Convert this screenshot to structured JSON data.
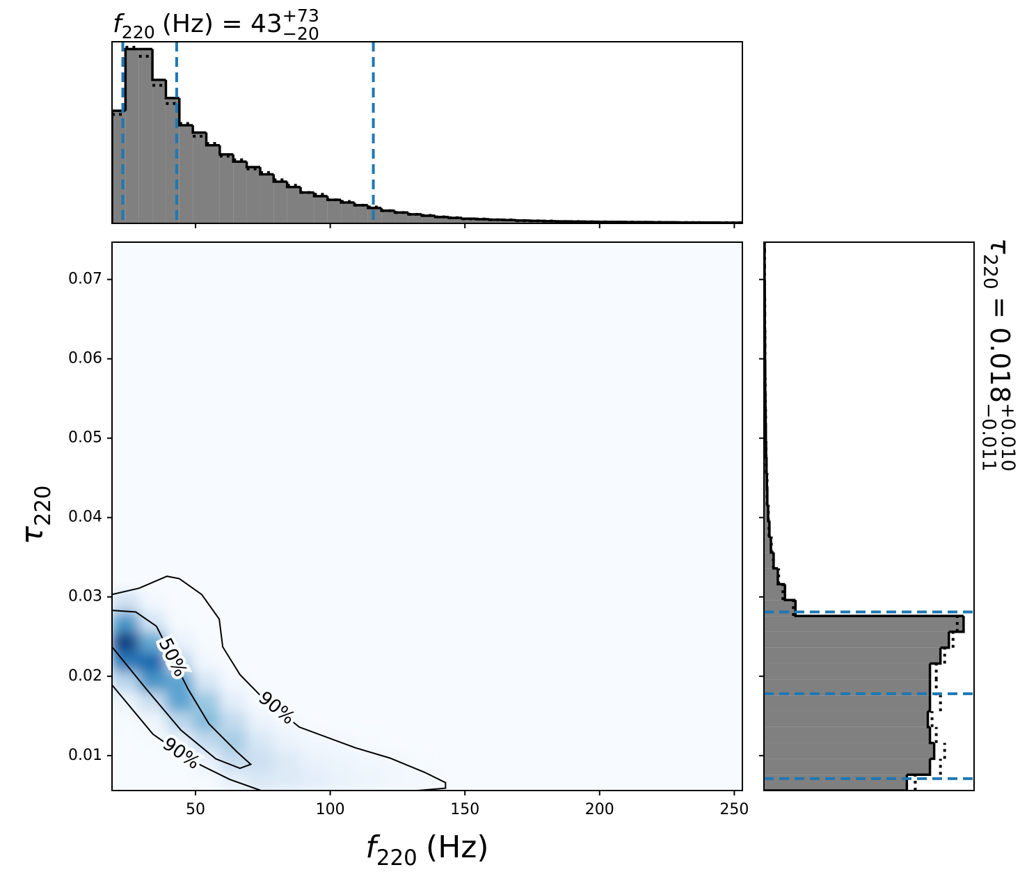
{
  "chart_data": [
    {
      "type": "histogram",
      "title": {
        "symbol": "f",
        "sub": "220",
        "text": "(Hz) = 43",
        "upper": "+73",
        "lower": "−20"
      },
      "bins": [
        19,
        24,
        29,
        34,
        39,
        44,
        49,
        54,
        59,
        64,
        69,
        74,
        79,
        84,
        89,
        94,
        99,
        104,
        109,
        114,
        119,
        124,
        129,
        134,
        139,
        144,
        149,
        154,
        159,
        164,
        169,
        174,
        179,
        184,
        189,
        194,
        199,
        204,
        209,
        214,
        219,
        224,
        229,
        234,
        239,
        244,
        249,
        254
      ],
      "values": [
        62,
        96,
        96,
        79,
        69,
        54,
        50,
        43,
        38,
        34,
        31,
        27,
        23,
        20,
        17,
        15,
        13,
        11.5,
        10,
        8.5,
        7,
        6,
        5,
        4.2,
        3.5,
        3,
        2.6,
        2.3,
        2,
        1.8,
        1.6,
        1.4,
        1.2,
        1.1,
        1,
        0.9,
        0.8,
        0.8,
        0.7,
        0.7,
        0.6,
        0.6,
        0.5,
        0.5,
        0.5,
        0.4,
        0.4
      ],
      "dotted_values": [
        60,
        97,
        92,
        76,
        66,
        55,
        48,
        44,
        37,
        35,
        30,
        28,
        24,
        21,
        17,
        16,
        13,
        12,
        10,
        9,
        7,
        6,
        5,
        4.4,
        3.6,
        3.1,
        2.5,
        2.4,
        2,
        1.9,
        1.5,
        1.4,
        1.3,
        1,
        1,
        0.9,
        0.8,
        0.7,
        0.7,
        0.6,
        0.6,
        0.5,
        0.5,
        0.5,
        0.4,
        0.4,
        0.4
      ],
      "xlim": [
        19,
        253
      ],
      "ylim": [
        0,
        100
      ],
      "xticks": [
        50,
        100,
        150,
        200,
        250
      ],
      "quantiles": [
        23,
        43,
        116
      ],
      "color": "#808080",
      "line_color": "#000000",
      "quantile_color": "#1f77b4"
    },
    {
      "type": "heatmap",
      "xlabel": {
        "symbol": "f",
        "sub": "220",
        "text": "(Hz)"
      },
      "ylabel": {
        "symbol": "τ",
        "sub": "220"
      },
      "x_edges": [
        19,
        29,
        39,
        49,
        59,
        69,
        79,
        89,
        99,
        109,
        119,
        129,
        139
      ],
      "y_edges": [
        0.0056,
        0.0081,
        0.0106,
        0.0131,
        0.0156,
        0.0181,
        0.0206,
        0.0231,
        0.0256,
        0.0281,
        0.0306
      ],
      "values": [
        [
          0,
          0,
          0,
          1,
          8,
          15,
          13,
          10,
          7,
          5,
          3,
          2
        ],
        [
          0,
          0,
          1,
          7,
          25,
          22,
          13,
          7,
          5,
          3,
          2,
          1
        ],
        [
          0,
          1,
          7,
          26,
          35,
          16,
          6,
          3,
          2,
          1,
          0,
          0
        ],
        [
          1,
          4,
          28,
          44,
          26,
          6,
          2,
          0,
          0,
          0,
          0,
          0
        ],
        [
          5,
          23,
          55,
          38,
          10,
          1,
          0,
          0,
          0,
          0,
          0,
          0
        ],
        [
          29,
          61,
          55,
          16,
          2,
          0,
          0,
          0,
          0,
          0,
          0,
          0
        ],
        [
          72,
          79,
          27,
          3,
          0,
          0,
          0,
          0,
          0,
          0,
          0,
          0
        ],
        [
          95,
          52,
          7,
          1,
          0,
          0,
          0,
          0,
          0,
          0,
          0,
          0
        ],
        [
          60,
          17,
          1,
          0,
          0,
          0,
          0,
          0,
          0,
          0,
          0,
          0
        ],
        [
          20,
          3,
          0,
          0,
          0,
          0,
          0,
          0,
          0,
          0,
          0,
          0
        ]
      ],
      "vlim": [
        0,
        100
      ],
      "colormap": [
        "#f7fbff",
        "#deebf7",
        "#c6dbef",
        "#9ecae1",
        "#6baed6",
        "#4292c6",
        "#2171b5",
        "#08519c",
        "#08306b"
      ],
      "xlim": [
        19,
        253
      ],
      "ylim": [
        0.0056,
        0.0747
      ],
      "xticks": [
        50,
        100,
        150,
        200,
        250
      ],
      "yticks": [
        0.01,
        0.02,
        0.03,
        0.04,
        0.05,
        0.06,
        0.07
      ],
      "contours": [
        {
          "labels": [
            "50%"
          ],
          "x": [
            19,
            27.8,
            35.5,
            47.2,
            55,
            65.3,
            70.5,
            66.5,
            57.5,
            44.6,
            31.7,
            19
          ],
          "y": [
            0.0283,
            0.0281,
            0.0263,
            0.0184,
            0.014,
            0.0105,
            0.0089,
            0.0084,
            0.0096,
            0.0132,
            0.0184,
            0.0237
          ]
        },
        {
          "labels": [
            "90%",
            "90%"
          ],
          "x": [
            19,
            29.1,
            39.4,
            44,
            52.3,
            58.8,
            60.1,
            66.5,
            74.3,
            88.5,
            109.2,
            122.1,
            135,
            142.8,
            142.8,
            132.4,
            null,
            74.3,
            62.7,
            47.2,
            34.2,
            19
          ],
          "y": [
            0.0303,
            0.0311,
            0.0326,
            0.0323,
            0.0303,
            0.0272,
            0.0237,
            0.0202,
            0.0175,
            0.0136,
            0.011,
            0.0097,
            0.0079,
            0.0066,
            0.0059,
            0.0056,
            null,
            0.0056,
            0.007,
            0.0096,
            0.0127,
            0.0189
          ]
        }
      ],
      "contour_color": "#000000"
    },
    {
      "type": "histogram",
      "orientation": "horizontal",
      "title": {
        "symbol": "τ",
        "sub": "220",
        "text": "= 0.018",
        "upper": "+0.010",
        "lower": "−0.011"
      },
      "bins": [
        0.0056,
        0.0076,
        0.0096,
        0.0116,
        0.0136,
        0.0156,
        0.0176,
        0.0196,
        0.0216,
        0.0236,
        0.0256,
        0.0276,
        0.0296,
        0.0316,
        0.0336,
        0.0356,
        0.0376,
        0.0396,
        0.0416,
        0.0436,
        0.0456,
        0.0476,
        0.0496,
        0.0516,
        0.0536,
        0.0556,
        0.0576,
        0.0596,
        0.0616,
        0.0636,
        0.0656,
        0.0676,
        0.0696,
        0.0716,
        0.0736,
        0.0756
      ],
      "values": [
        68,
        79,
        81,
        79,
        78,
        79,
        79,
        79,
        84,
        88,
        95,
        15,
        10,
        6.6,
        4.6,
        3.3,
        2.6,
        2,
        1.6,
        1.4,
        1.2,
        1,
        0.9,
        0.8,
        0.7,
        0.6,
        0.6,
        0.5,
        0.5,
        0.4,
        0.4,
        0.4,
        0.3,
        0.3,
        0.3
      ],
      "dotted_values": [
        72,
        84,
        86,
        82,
        80,
        84,
        82,
        82,
        86,
        90,
        92,
        14,
        9,
        7,
        4.5,
        3.5,
        2.4,
        2.1,
        1.5,
        1.5,
        1.1,
        1,
        0.8,
        0.8,
        0.7,
        0.6,
        0.5,
        0.5,
        0.5,
        0.4,
        0.4,
        0.3,
        0.3,
        0.3,
        0.3
      ],
      "ylim": [
        0.0056,
        0.0747
      ],
      "xlim": [
        0,
        100
      ],
      "yticks": [
        0.01,
        0.02,
        0.03,
        0.04,
        0.05,
        0.06,
        0.07
      ],
      "quantiles": [
        0.0071,
        0.0178,
        0.0281
      ],
      "color": "#808080",
      "line_color": "#000000",
      "quantile_color": "#1f77b4"
    }
  ]
}
